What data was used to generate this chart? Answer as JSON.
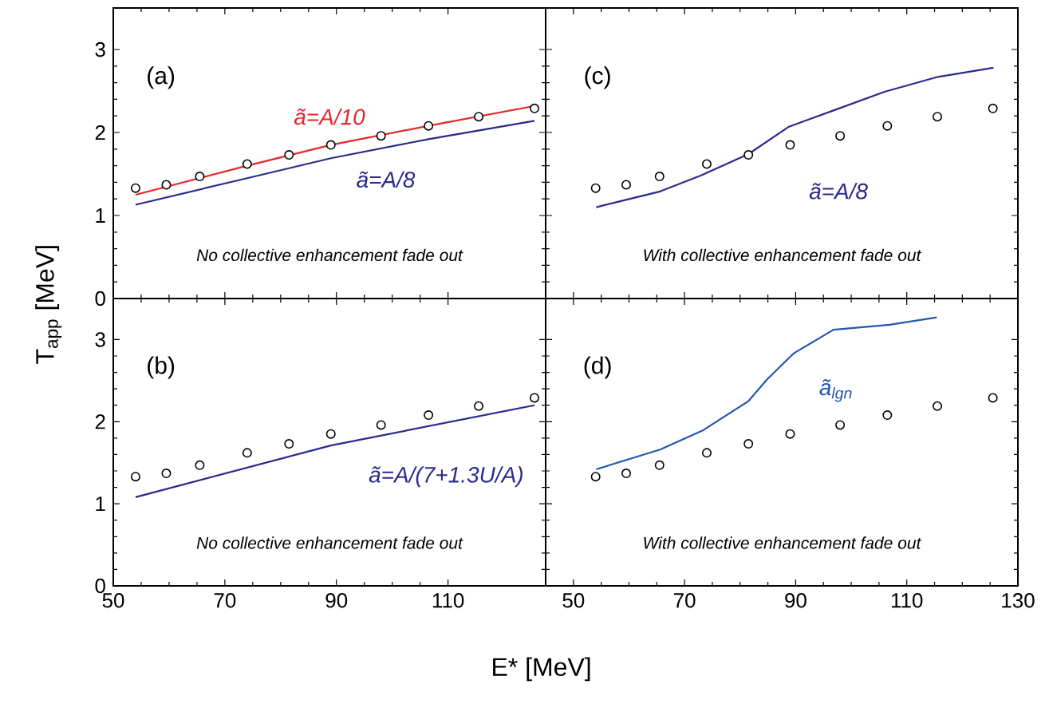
{
  "chart_data": [
    {
      "type": "line",
      "xlim": [
        50,
        127.5
      ],
      "ylim": [
        0,
        3.5
      ],
      "xticks": [
        50,
        70,
        90,
        110
      ],
      "yticks": [
        0,
        1,
        2,
        3
      ],
      "tick_labels": "y",
      "series": [
        {
          "color": "#e8262a",
          "x": [
            54,
            74,
            89,
            106.5,
            125.5
          ],
          "values": [
            1.25,
            1.6,
            1.85,
            2.08,
            2.32
          ]
        },
        {
          "color": "#2b2a8c",
          "x": [
            54,
            74,
            89,
            106.5,
            125.5
          ],
          "values": [
            1.13,
            1.45,
            1.69,
            1.92,
            2.14
          ]
        },
        {
          "type": "scatter",
          "color": "#000000",
          "x": [
            54,
            59.5,
            65.5,
            74,
            81.5,
            89,
            98,
            106.5,
            115.5,
            125.5
          ],
          "values": [
            1.33,
            1.37,
            1.47,
            1.62,
            1.73,
            1.85,
            1.96,
            2.08,
            2.19,
            2.29
          ]
        }
      ],
      "annotations": [
        "(a)",
        "ã=A/10",
        "ã=A/8",
        "No collective enhancement fade out"
      ]
    },
    {
      "type": "line",
      "xlim": [
        45,
        130
      ],
      "ylim": [
        0,
        3.5
      ],
      "xticks": [
        50,
        70,
        90,
        110,
        130
      ],
      "yticks": [
        0,
        1,
        2,
        3
      ],
      "tick_labels": false,
      "series": [
        {
          "color": "#2b2a8c",
          "x": [
            54.1,
            65.6,
            72.9,
            81.5,
            88.8,
            97.4,
            106,
            115.6,
            125.6
          ],
          "values": [
            1.1,
            1.29,
            1.48,
            1.74,
            2.07,
            2.28,
            2.49,
            2.67,
            2.78
          ]
        },
        {
          "type": "scatter",
          "color": "#000000",
          "x": [
            54,
            59.5,
            65.5,
            74,
            81.5,
            89,
            98,
            106.5,
            115.5,
            125.5
          ],
          "values": [
            1.33,
            1.37,
            1.47,
            1.62,
            1.73,
            1.85,
            1.96,
            2.08,
            2.19,
            2.29
          ]
        }
      ],
      "annotations": [
        "(c)",
        "ã=A/8",
        "With collective enhancement fade out"
      ]
    },
    {
      "type": "line",
      "xlim": [
        50,
        127.5
      ],
      "ylim": [
        0,
        3.5
      ],
      "xticks": [
        50,
        70,
        90,
        110
      ],
      "yticks": [
        0,
        1,
        2,
        3
      ],
      "xlabel": "E* [MeV]",
      "ylabel": "T$_{app}$ [MeV]",
      "series": [
        {
          "color": "#2b2a8c",
          "x": [
            54,
            89,
            125.5
          ],
          "values": [
            1.08,
            1.71,
            2.2
          ]
        },
        {
          "type": "scatter",
          "color": "#000000",
          "x": [
            54,
            59.5,
            65.5,
            74,
            81.5,
            89,
            98,
            106.5,
            115.5,
            125.5
          ],
          "values": [
            1.33,
            1.37,
            1.47,
            1.62,
            1.73,
            1.85,
            1.96,
            2.08,
            2.19,
            2.29
          ]
        }
      ],
      "annotations": [
        "(b)",
        "ã=A/(7+1.3U/A)",
        "No collective enhancement fade out"
      ]
    },
    {
      "type": "line",
      "xlim": [
        45,
        130
      ],
      "ylim": [
        0,
        3.5
      ],
      "xticks": [
        50,
        70,
        90,
        110,
        130
      ],
      "yticks": [
        0,
        1,
        2,
        3
      ],
      "tick_labels": "x",
      "series": [
        {
          "color": "#2456b0",
          "x": [
            54.1,
            65.6,
            73.2,
            81.5,
            84.8,
            89.6,
            96.8,
            106.9,
            115.4
          ],
          "values": [
            1.42,
            1.66,
            1.89,
            2.25,
            2.51,
            2.83,
            3.12,
            3.18,
            3.27
          ]
        },
        {
          "type": "scatter",
          "color": "#000000",
          "x": [
            54,
            59.5,
            65.5,
            74,
            81.5,
            89,
            98,
            106.5,
            115.5,
            125.5
          ],
          "values": [
            1.33,
            1.37,
            1.47,
            1.62,
            1.73,
            1.85,
            1.96,
            2.08,
            2.19,
            2.29
          ]
        }
      ],
      "annotations": [
        "(d)",
        "ã$_{lgn}$",
        "With collective enhancement fade out"
      ]
    }
  ]
}
